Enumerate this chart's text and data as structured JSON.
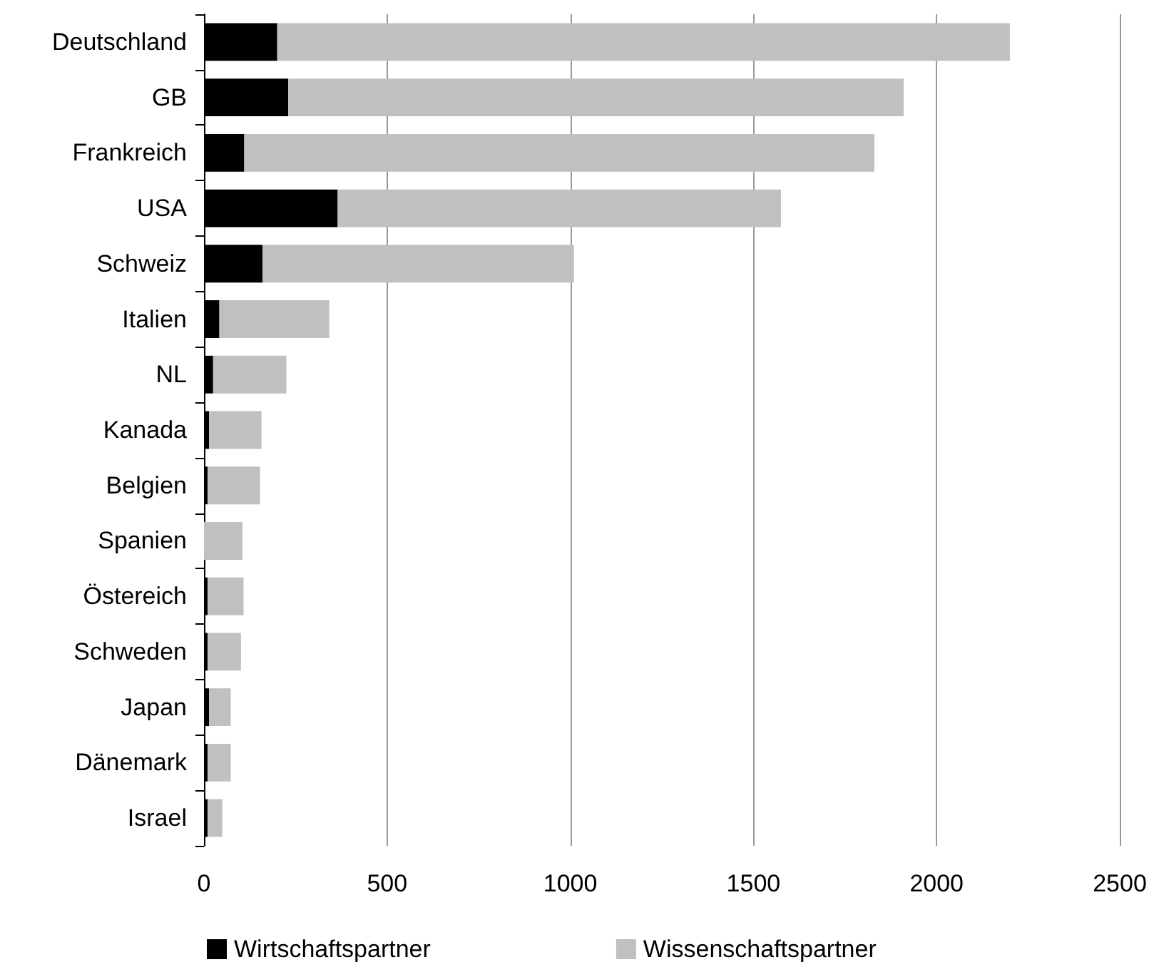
{
  "chart_data": {
    "type": "bar",
    "orientation": "horizontal",
    "stacked": true,
    "categories": [
      "Deutschland",
      "GB",
      "Frankreich",
      "USA",
      "Schweiz",
      "Italien",
      "NL",
      "Kanada",
      "Belgien",
      "Spanien",
      "Östereich",
      "Schweden",
      "Japan",
      "Dänemark",
      "Israel"
    ],
    "series": [
      {
        "name": "Wirtschaftspartner",
        "color": "#000000",
        "values": [
          200,
          230,
          110,
          365,
          160,
          42,
          25,
          14,
          10,
          0,
          10,
          10,
          14,
          10,
          10
        ]
      },
      {
        "name": "Wissenschaftspartner",
        "color": "#c0c0c0",
        "values": [
          2000,
          1680,
          1720,
          1210,
          850,
          300,
          200,
          143,
          143,
          105,
          98,
          91,
          59,
          63,
          40
        ]
      }
    ],
    "xlim": [
      0,
      2500
    ],
    "xticks": [
      0,
      500,
      1000,
      1500,
      2000,
      2500
    ],
    "grid": "x",
    "legend": "bottom"
  }
}
